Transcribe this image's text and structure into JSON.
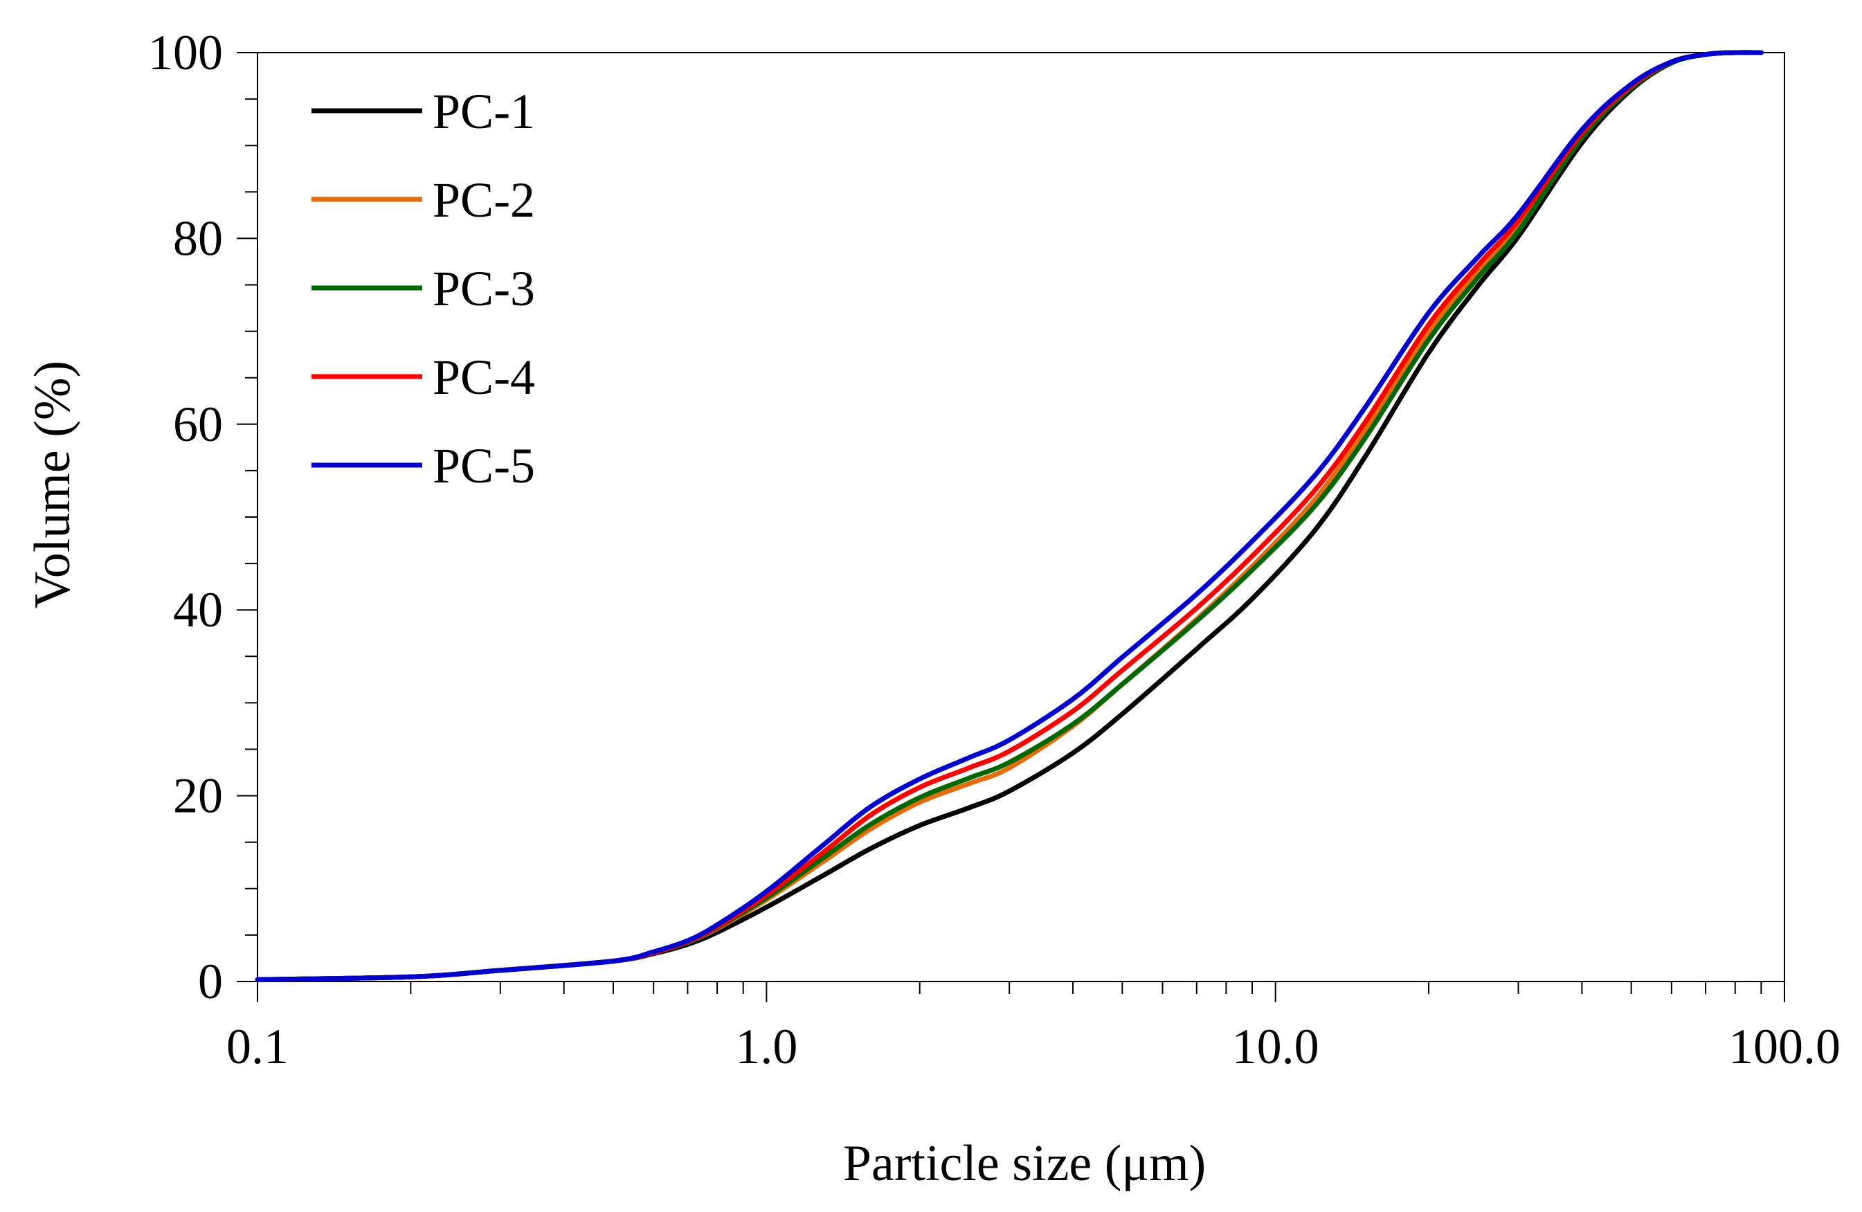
{
  "chart_data": {
    "type": "line",
    "title": "",
    "xlabel": "Particle size (μm)",
    "ylabel": "Volume (%)",
    "xscale": "log",
    "xlim": [
      0.1,
      100
    ],
    "ylim": [
      0,
      100
    ],
    "x_ticks": [
      {
        "value": 0.1,
        "label": "0.1"
      },
      {
        "value": 1,
        "label": "1.0"
      },
      {
        "value": 10,
        "label": "10.0"
      },
      {
        "value": 100,
        "label": "100.0"
      }
    ],
    "y_ticks": [
      {
        "value": 0,
        "label": "0"
      },
      {
        "value": 20,
        "label": "20"
      },
      {
        "value": 40,
        "label": "40"
      },
      {
        "value": 60,
        "label": "60"
      },
      {
        "value": 80,
        "label": "80"
      },
      {
        "value": 100,
        "label": "100"
      }
    ],
    "grid": false,
    "legend_position": "top-left",
    "series": [
      {
        "name": "PC-1",
        "color": "#000000",
        "x": [
          0.1,
          0.2,
          0.3,
          0.5,
          0.6,
          0.7,
          0.8,
          1.0,
          1.3,
          1.6,
          2.0,
          2.5,
          3.0,
          4.0,
          5.0,
          7.0,
          9.0,
          12.0,
          15.0,
          20.0,
          25.0,
          30.0,
          40.0,
          50.0,
          60.0,
          70.0,
          80.0,
          90.0
        ],
        "y": [
          0.2,
          0.5,
          1.2,
          2.2,
          3.0,
          4.0,
          5.3,
          8.0,
          11.5,
          14.3,
          16.8,
          18.7,
          20.5,
          24.6,
          28.8,
          35.8,
          41.2,
          48.7,
          56.5,
          67.7,
          74.9,
          80.2,
          90.3,
          96.0,
          98.9,
          99.8,
          100.0,
          100.0
        ]
      },
      {
        "name": "PC-2",
        "color": "#E46C0A",
        "x": [
          0.1,
          0.2,
          0.3,
          0.5,
          0.6,
          0.7,
          0.8,
          1.0,
          1.3,
          1.6,
          2.0,
          2.5,
          3.0,
          4.0,
          5.0,
          7.0,
          9.0,
          12.0,
          15.0,
          20.0,
          25.0,
          30.0,
          40.0,
          50.0,
          60.0,
          70.0,
          80.0,
          90.0
        ],
        "y": [
          0.2,
          0.5,
          1.2,
          2.2,
          3.1,
          4.2,
          5.7,
          8.8,
          13.0,
          16.4,
          19.3,
          21.3,
          23.0,
          27.5,
          32.0,
          39.0,
          44.7,
          52.0,
          59.4,
          69.9,
          76.4,
          81.3,
          91.0,
          96.3,
          99.0,
          99.8,
          100.0,
          100.0
        ]
      },
      {
        "name": "PC-3",
        "color": "#006600",
        "x": [
          0.1,
          0.2,
          0.3,
          0.5,
          0.6,
          0.7,
          0.8,
          1.0,
          1.3,
          1.6,
          2.0,
          2.5,
          3.0,
          4.0,
          5.0,
          7.0,
          9.0,
          12.0,
          15.0,
          20.0,
          25.0,
          30.0,
          40.0,
          50.0,
          60.0,
          70.0,
          80.0,
          90.0
        ],
        "y": [
          0.2,
          0.5,
          1.2,
          2.2,
          3.1,
          4.2,
          5.8,
          9.0,
          13.4,
          16.9,
          19.8,
          21.9,
          23.6,
          27.7,
          32.0,
          38.8,
          44.3,
          51.3,
          58.5,
          69.1,
          75.8,
          80.8,
          90.8,
          96.2,
          98.9,
          99.8,
          100.0,
          100.0
        ]
      },
      {
        "name": "PC-4",
        "color": "#FF0000",
        "x": [
          0.1,
          0.2,
          0.3,
          0.5,
          0.6,
          0.7,
          0.8,
          1.0,
          1.3,
          1.6,
          2.0,
          2.5,
          3.0,
          4.0,
          5.0,
          7.0,
          9.0,
          12.0,
          15.0,
          20.0,
          25.0,
          30.0,
          40.0,
          50.0,
          60.0,
          70.0,
          80.0,
          90.0
        ],
        "y": [
          0.2,
          0.5,
          1.2,
          2.2,
          3.1,
          4.3,
          5.9,
          9.3,
          14.0,
          17.9,
          20.9,
          23.0,
          24.8,
          29.1,
          33.5,
          40.2,
          45.8,
          53.0,
          60.2,
          70.7,
          77.1,
          81.9,
          91.3,
          96.4,
          99.0,
          99.8,
          100.0,
          100.0
        ]
      },
      {
        "name": "PC-5",
        "color": "#0000CC",
        "x": [
          0.1,
          0.2,
          0.3,
          0.5,
          0.6,
          0.7,
          0.8,
          1.0,
          1.3,
          1.6,
          2.0,
          2.5,
          3.0,
          4.0,
          5.0,
          7.0,
          9.0,
          12.0,
          15.0,
          20.0,
          25.0,
          30.0,
          40.0,
          50.0,
          60.0,
          70.0,
          80.0,
          90.0
        ],
        "y": [
          0.2,
          0.5,
          1.2,
          2.2,
          3.2,
          4.4,
          6.1,
          9.7,
          14.8,
          18.8,
          21.8,
          24.1,
          26.0,
          30.4,
          34.9,
          41.7,
          47.4,
          54.6,
          61.8,
          72.0,
          78.0,
          82.6,
          91.7,
          96.6,
          99.0,
          99.8,
          100.0,
          100.0
        ]
      }
    ]
  }
}
